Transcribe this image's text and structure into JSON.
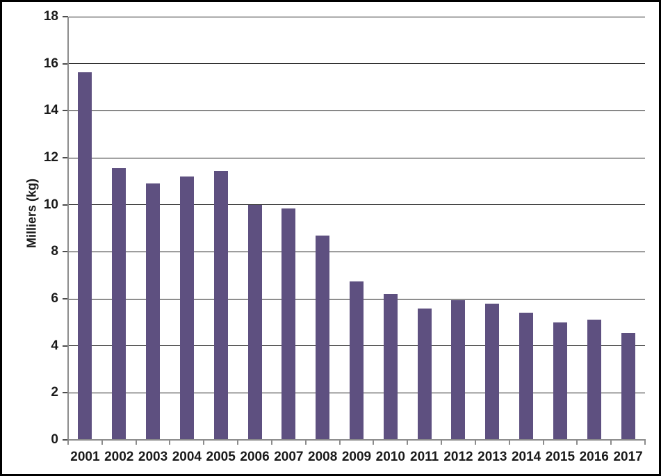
{
  "chart_data": {
    "type": "bar",
    "title": "",
    "xlabel": "",
    "ylabel": "Milliers (kg)",
    "categories": [
      "2001",
      "2002",
      "2003",
      "2004",
      "2005",
      "2006",
      "2007",
      "2008",
      "2009",
      "2010",
      "2011",
      "2012",
      "2013",
      "2014",
      "2015",
      "2016",
      "2017"
    ],
    "values": [
      15.65,
      11.55,
      10.9,
      11.2,
      11.45,
      10.0,
      9.85,
      8.7,
      6.75,
      6.2,
      5.6,
      5.95,
      5.8,
      5.4,
      5.0,
      5.1,
      4.55
    ],
    "ylim": [
      0,
      18
    ],
    "ytick_step": 2,
    "ytick_labels": [
      "0",
      "2",
      "4",
      "6",
      "8",
      "10",
      "12",
      "14",
      "16",
      "18"
    ],
    "grid": "horizontal",
    "legend_position": "none",
    "bar_color": "#5E5080",
    "gridline_color": "#1A1A1A",
    "axis_color": "#8C8C8C",
    "tick_color": "#4D4D4D",
    "text_color": "#1A1A1A",
    "frame_color": "#000000",
    "background_color": "#FFFFFF"
  }
}
